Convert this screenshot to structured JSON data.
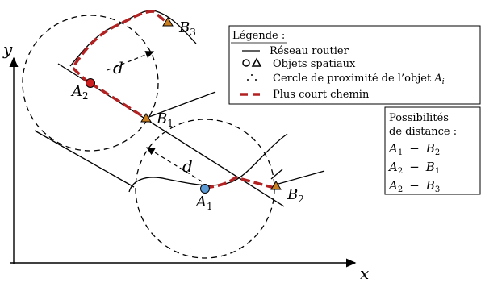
{
  "axes": {
    "x_label": "x",
    "y_label": "y"
  },
  "labels": {
    "d_top": "d",
    "d_bottom": "d",
    "A1": {
      "main": "A",
      "sub": "1"
    },
    "A2": {
      "main": "A",
      "sub": "2"
    },
    "B1": {
      "main": "B",
      "sub": "1"
    },
    "B2": {
      "main": "B",
      "sub": "2"
    },
    "B3": {
      "main": "B",
      "sub": "3"
    }
  },
  "legend": {
    "title": "Légende :",
    "items": [
      {
        "key": "road",
        "label": "Réseau routier"
      },
      {
        "key": "objects",
        "label": "Objets spatiaux"
      },
      {
        "key": "circle",
        "label": "Cercle de proximité de l’objet ",
        "label_var": "A",
        "label_sub": "i"
      },
      {
        "key": "path",
        "label": "Plus court chemin"
      }
    ]
  },
  "distances": {
    "title_line1": "Possibilités",
    "title_line2": "de distance :",
    "pairs": [
      {
        "a": "A",
        "a_sub": "1",
        "b": "B",
        "b_sub": "2"
      },
      {
        "a": "A",
        "a_sub": "2",
        "b": "B",
        "b_sub": "1"
      },
      {
        "a": "A",
        "a_sub": "2",
        "b": "B",
        "b_sub": "3"
      }
    ],
    "separator": "−"
  },
  "colors": {
    "path_red": "#b22222",
    "point_A1": "#5b9bd5",
    "point_A2": "#cc1f1f",
    "triangle": "#c87d1e",
    "ink": "#000000"
  }
}
